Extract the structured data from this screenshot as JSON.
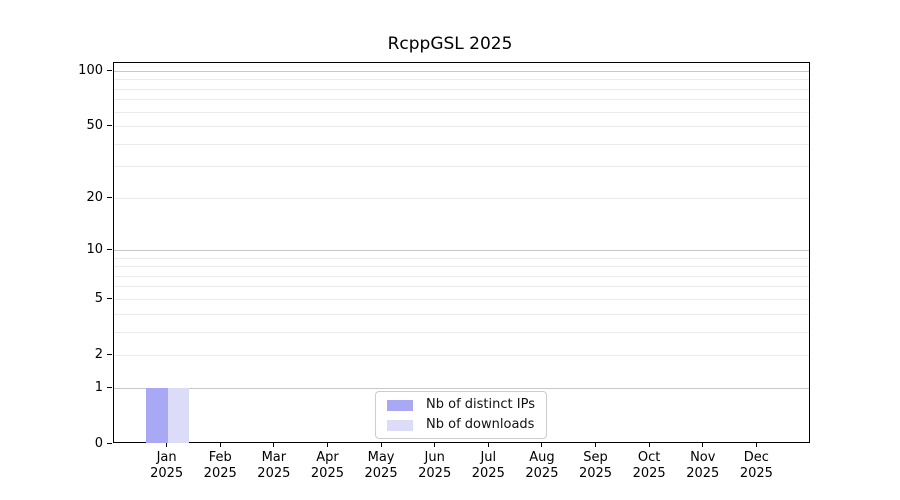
{
  "chart_data": {
    "type": "bar",
    "title": "RcppGSL 2025",
    "xlabel": "",
    "ylabel": "",
    "categories": [
      "Jan 2025",
      "Feb 2025",
      "Mar 2025",
      "Apr 2025",
      "May 2025",
      "Jun 2025",
      "Jul 2025",
      "Aug 2025",
      "Sep 2025",
      "Oct 2025",
      "Nov 2025",
      "Dec 2025"
    ],
    "series": [
      {
        "name": "Nb of distinct IPs",
        "color": "#a8a8f4",
        "values": [
          1,
          0,
          0,
          0,
          0,
          0,
          0,
          0,
          0,
          0,
          0,
          0
        ]
      },
      {
        "name": "Nb of downloads",
        "color": "#dcdcf8",
        "values": [
          1,
          0,
          0,
          0,
          0,
          0,
          0,
          0,
          0,
          0,
          0,
          0
        ]
      }
    ],
    "yscale": "log1p",
    "ylim": [
      0,
      111
    ],
    "yticks": [
      0,
      1,
      2,
      5,
      10,
      20,
      50,
      100
    ],
    "ytick_labels": [
      "0",
      "1",
      "2",
      "5",
      "10",
      "20",
      "50",
      "100"
    ],
    "major_gridlines": [
      1,
      10,
      100
    ],
    "minor_gridlines": [
      2,
      3,
      4,
      5,
      6,
      7,
      8,
      9,
      20,
      30,
      40,
      50,
      60,
      70,
      80,
      90
    ],
    "grid": "horizontal",
    "legend_position": "lower center"
  }
}
